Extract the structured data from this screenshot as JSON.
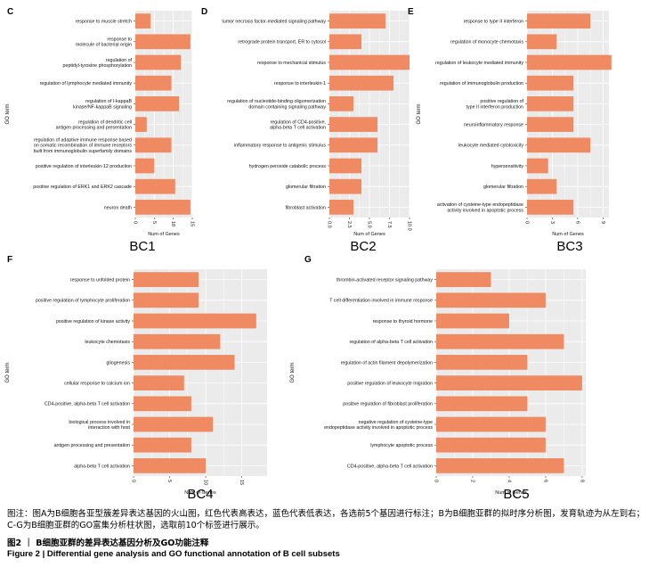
{
  "style": {
    "bar_color": "#ef8a62",
    "panel_bg": "#ebebeb",
    "grid_color": "#ffffff"
  },
  "chart_data": [
    {
      "type": "bar",
      "panel": "C",
      "cluster": "BC1",
      "orientation": "horizontal",
      "ylabel": "GO term",
      "xlabel": "Num of Genes",
      "xlim": [
        0,
        15
      ],
      "xticks": [
        "0",
        "5",
        "10",
        "15"
      ],
      "categories": [
        [
          "response to muscle stretch"
        ],
        [
          "response to",
          "molecule of bacterial origin"
        ],
        [
          "regulation of",
          "peptidyl-tyrosine phosphorylation"
        ],
        [
          "regulation of lymphocyte mediated immunity"
        ],
        [
          "regulation of I-kappaB",
          "kinase/NF-kappaB signaling"
        ],
        [
          "regulation of dendritic cell",
          "antigen processing and presentation"
        ],
        [
          "regulation of adaptive immune response based",
          "on somatic recombination of immune receptors",
          "built from immunoglobulin superfamily domains"
        ],
        [
          "positive regulation of interleukin-12 production"
        ],
        [
          "positive regulation of ERK1 and ERK2 cascade"
        ],
        [
          "neuron death"
        ]
      ],
      "values": [
        4,
        14.5,
        12,
        9.5,
        11.5,
        3,
        9.5,
        5,
        10.5,
        14.5
      ]
    },
    {
      "type": "bar",
      "panel": "D",
      "cluster": "BC2",
      "orientation": "horizontal",
      "ylabel": "",
      "xlabel": "Num of Genes",
      "xlim": [
        0,
        10
      ],
      "xticks": [
        "0.0",
        "2.5",
        "5.0",
        "7.5",
        "10.0"
      ],
      "categories": [
        [
          "tumor necrosis factor-mediated signaling pathway"
        ],
        [
          "retrograde protein transport, ER to cytosol"
        ],
        [
          "response to mechanical stimulus"
        ],
        [
          "response to interleukin-1"
        ],
        [
          "regulation of nucleotide-binding oligomerization",
          "domain containing signaling pathway"
        ],
        [
          "regulation of CD4-positive,",
          "alpha-beta T cell activation"
        ],
        [
          "inflammatory response to antigenic stimulus"
        ],
        [
          "hydrogen peroxide catabolic process"
        ],
        [
          "glomerular filtration"
        ],
        [
          "fibroblast activation"
        ]
      ],
      "values": [
        7,
        4,
        10,
        8,
        3,
        6,
        6,
        4,
        4,
        3
      ]
    },
    {
      "type": "bar",
      "panel": "E",
      "cluster": "BC3",
      "orientation": "horizontal",
      "ylabel": "GO term",
      "xlabel": "Num of Genes",
      "xlim": [
        0,
        9.7
      ],
      "xticks": [
        "0",
        "3",
        "6",
        "9"
      ],
      "categories": [
        [
          "response to type II interferon"
        ],
        [
          "regulation of monocyte chemotaxis"
        ],
        [
          "regulation of leukocyte mediated immunity"
        ],
        [
          "regulation of immunoglobulin production"
        ],
        [
          "positive regulation of",
          "type II interferon production"
        ],
        [
          "neuroinflammatory response"
        ],
        [
          "leukocyte mediated cytotoxicity"
        ],
        [
          "hypersensitivity"
        ],
        [
          "glomerular filtration"
        ],
        [
          "activation of cysteine-type endopeptidase",
          "activity involved in apoptotic process"
        ]
      ],
      "values": [
        7.5,
        3.5,
        10,
        5.5,
        5.5,
        5.5,
        7.5,
        2.5,
        3.5,
        5.5
      ]
    },
    {
      "type": "bar",
      "panel": "F",
      "cluster": "BC4",
      "orientation": "horizontal",
      "ylabel": "GO term",
      "xlabel": "Num of Genes",
      "xlim": [
        0,
        18.5
      ],
      "xticks": [
        "0",
        "5",
        "10",
        "15"
      ],
      "categories": [
        [
          "response to unfolded protein"
        ],
        [
          "positive regulation of lymphocyte proliferation"
        ],
        [
          "positive regulation of kinase activity"
        ],
        [
          "leukocyte chemotaxis"
        ],
        [
          "gliogenesis"
        ],
        [
          "cellular response to calcium ion"
        ],
        [
          "CD4-positive, alpha-beta T cell activation"
        ],
        [
          "biological process involved in",
          "interaction with host"
        ],
        [
          "antigen processing and presentation"
        ],
        [
          "alpha-beta T cell activation"
        ]
      ],
      "values": [
        9,
        9,
        17,
        12,
        14,
        7,
        8,
        11,
        8,
        10
      ]
    },
    {
      "type": "bar",
      "panel": "G",
      "cluster": "BC5",
      "orientation": "horizontal",
      "ylabel": "GO term",
      "xlabel": "Num of Genes",
      "xlim": [
        0,
        8.2
      ],
      "xticks": [
        "0",
        "2",
        "4",
        "6",
        "8"
      ],
      "categories": [
        [
          "thrombin-activated receptor signaling pathway"
        ],
        [
          "T cell differentiation involved in immune response"
        ],
        [
          "response to thyroid hormone"
        ],
        [
          "regulation of alpha-beta T cell activation"
        ],
        [
          "regulation of actin filament depolymerization"
        ],
        [
          "positive regulation of leukocyte migration"
        ],
        [
          "positive regulation of fibroblast proliferation"
        ],
        [
          "negative regulation of cysteine-type",
          "endopeptidase activity involved in apoptotic process"
        ],
        [
          "lymphocyte apoptotic process"
        ],
        [
          "CD4-positive, alpha-beta T cell activation"
        ]
      ],
      "values": [
        3,
        6,
        4,
        7,
        5,
        8,
        5,
        6,
        6,
        7
      ]
    }
  ],
  "caption": {
    "note": "图注：图A为B细胞各亚型簇差异表达基因的火山图，红色代表高表达，蓝色代表低表达，各选前5个基因进行标注；B为B细胞亚群的拟时序分析图，发育轨迹为从左到右；C-G为B细胞亚群的GO富集分析柱状图，选取前10个标签进行展示。",
    "title_cn": "图2 ｜ B细胞亚群的差异表达基因分析及GO功能注释",
    "title_en": "Figure 2 | Differential gene analysis and GO functional annotation of B cell subsets"
  }
}
